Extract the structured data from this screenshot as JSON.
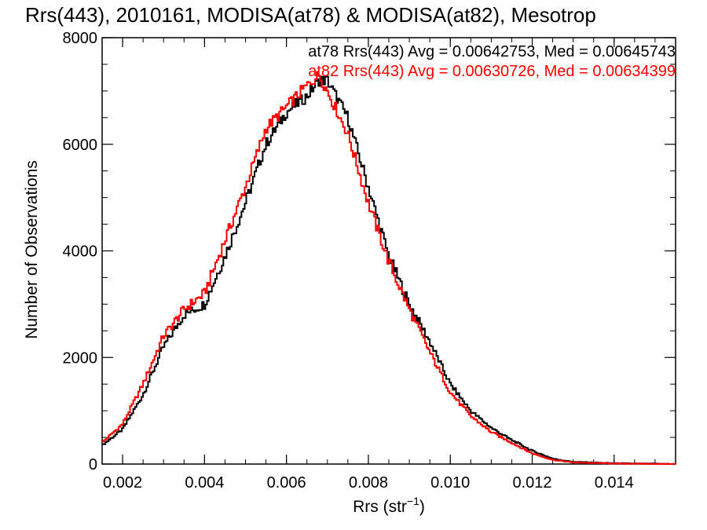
{
  "chart_data": {
    "type": "line",
    "title": "Rrs(443), 2010161, MODISA(at78) & MODISA(at82), Mesotrop",
    "xlabel": "Rrs (str",
    "xlabel_sup": "−1",
    "xlabel_close": ")",
    "ylabel": "Number of Observations",
    "xlim": [
      0.0015,
      0.0155
    ],
    "ylim": [
      0,
      8000
    ],
    "xticks": [
      {
        "value": 0.002,
        "label": "0.002"
      },
      {
        "value": 0.004,
        "label": "0.004"
      },
      {
        "value": 0.006,
        "label": "0.006"
      },
      {
        "value": 0.008,
        "label": "0.008"
      },
      {
        "value": 0.01,
        "label": "0.010"
      },
      {
        "value": 0.012,
        "label": "0.012"
      },
      {
        "value": 0.014,
        "label": "0.014"
      }
    ],
    "yticks": [
      {
        "value": 0,
        "label": "0"
      },
      {
        "value": 2000,
        "label": "2000"
      },
      {
        "value": 4000,
        "label": "4000"
      },
      {
        "value": 6000,
        "label": "6000"
      },
      {
        "value": 8000,
        "label": "8000"
      }
    ],
    "step": "histogram",
    "grid": false,
    "legend_position": "top-right",
    "series": [
      {
        "key": "at78",
        "color": "#000000",
        "x": [
          0.0015,
          0.002,
          0.0025,
          0.003,
          0.0035,
          0.004,
          0.0045,
          0.005,
          0.0055,
          0.006,
          0.0065,
          0.0068,
          0.007,
          0.0075,
          0.008,
          0.0085,
          0.009,
          0.0095,
          0.01,
          0.0105,
          0.011,
          0.0115,
          0.012,
          0.0125,
          0.013,
          0.014,
          0.0155
        ],
        "y": [
          350,
          650,
          1300,
          2200,
          2800,
          3000,
          3900,
          4900,
          6000,
          6600,
          6900,
          7200,
          7200,
          6500,
          5200,
          3900,
          3000,
          2300,
          1500,
          1000,
          680,
          450,
          250,
          100,
          40,
          15,
          0
        ]
      },
      {
        "key": "at82",
        "color": "#ff0000",
        "x": [
          0.0015,
          0.002,
          0.0025,
          0.003,
          0.0035,
          0.004,
          0.0045,
          0.005,
          0.0055,
          0.006,
          0.0065,
          0.0068,
          0.007,
          0.0075,
          0.008,
          0.0085,
          0.009,
          0.0095,
          0.01,
          0.0105,
          0.011,
          0.0115,
          0.012,
          0.0125,
          0.013,
          0.014,
          0.0155
        ],
        "y": [
          400,
          750,
          1500,
          2400,
          2900,
          3200,
          4200,
          5200,
          6300,
          6700,
          7100,
          7300,
          7000,
          6200,
          4900,
          3800,
          2900,
          2100,
          1350,
          900,
          600,
          400,
          200,
          80,
          30,
          10,
          0
        ]
      }
    ],
    "legend": [
      {
        "key": "at78",
        "color": "#000000",
        "text": "at78 Rrs(443) Avg = 0.00642753, Med = 0.00645743"
      },
      {
        "key": "at82",
        "color": "#ff0000",
        "text": "at82 Rrs(443) Avg = 0.00630726, Med = 0.00634399"
      }
    ]
  }
}
